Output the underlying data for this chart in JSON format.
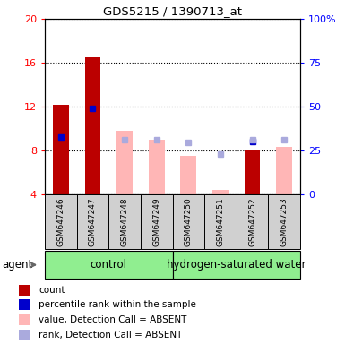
{
  "title": "GDS5215 / 1390713_at",
  "samples": [
    "GSM647246",
    "GSM647247",
    "GSM647248",
    "GSM647249",
    "GSM647250",
    "GSM647251",
    "GSM647252",
    "GSM647253"
  ],
  "ylim_left": [
    4,
    20
  ],
  "ylim_right": [
    0,
    100
  ],
  "yticks_left": [
    4,
    8,
    12,
    16,
    20
  ],
  "yticks_right": [
    0,
    25,
    50,
    75,
    100
  ],
  "ytick_labels_right": [
    "0",
    "25",
    "50",
    "75",
    "100%"
  ],
  "red_bars": [
    12.2,
    16.5,
    null,
    null,
    null,
    null,
    8.1,
    null
  ],
  "blue_dots": [
    9.2,
    11.8,
    null,
    null,
    null,
    null,
    8.8,
    null
  ],
  "pink_bars": [
    null,
    null,
    9.8,
    9.0,
    7.5,
    4.4,
    null,
    8.3
  ],
  "lavender_dots": [
    null,
    null,
    9.0,
    9.0,
    8.7,
    7.7,
    9.0,
    9.0
  ],
  "bar_width": 0.5,
  "red_color": "#BB0000",
  "blue_color": "#0000CC",
  "pink_color": "#FFB6B6",
  "lavender_color": "#AAAADD",
  "agent_label": "agent",
  "xlabel_control": "control",
  "xlabel_h2": "hydrogen-saturated water",
  "legend_labels": [
    "count",
    "percentile rank within the sample",
    "value, Detection Call = ABSENT",
    "rank, Detection Call = ABSENT"
  ],
  "group_bg": "#90EE90",
  "sample_bg": "#D0D0D0"
}
